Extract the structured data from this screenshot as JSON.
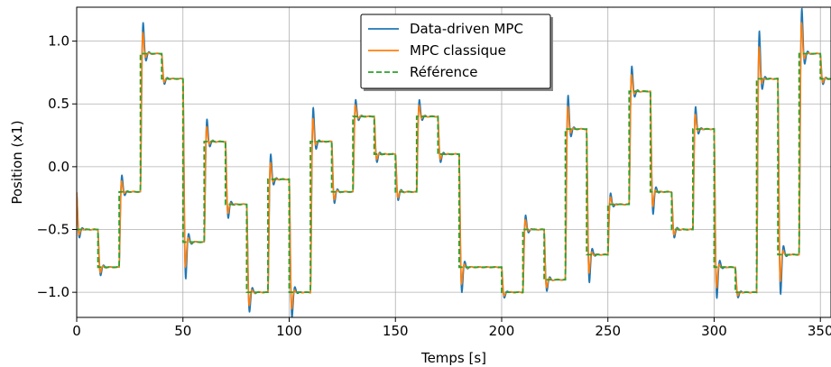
{
  "chart_data": {
    "type": "line",
    "title": "",
    "xlabel": "Temps [s]",
    "ylabel": "Position (x1)",
    "xlim": [
      0,
      355
    ],
    "ylim": [
      -1.2,
      1.27
    ],
    "grid": true,
    "legend_position": "top-center",
    "x_ticks": [
      0,
      50,
      100,
      150,
      200,
      250,
      300,
      350
    ],
    "x_tick_labels": [
      "0",
      "50",
      "100",
      "150",
      "200",
      "250",
      "300",
      "350"
    ],
    "y_ticks": [
      -1.0,
      -0.5,
      0.0,
      0.5,
      1.0
    ],
    "y_tick_labels": [
      "−1.0",
      "−0.5",
      "0.0",
      "0.5",
      "1.0"
    ],
    "reference_steps": {
      "step_duration": 10,
      "levels": [
        -0.5,
        -0.8,
        -0.2,
        0.9,
        0.7,
        -0.6,
        0.2,
        -0.3,
        -1.0,
        -0.1,
        -1.0,
        0.2,
        -0.2,
        0.4,
        0.1,
        -0.2,
        0.4,
        0.1,
        -0.8,
        -0.8,
        -1.0,
        -0.5,
        -0.9,
        0.3,
        -0.7,
        -0.3,
        0.6,
        -0.2,
        -0.5,
        0.3,
        -0.8,
        -1.0,
        0.7,
        -0.7,
        0.9,
        0.7
      ]
    },
    "series": [
      {
        "name": "Data-driven MPC",
        "color": "#1f77b4",
        "style": "solid",
        "tracks": "reference_steps",
        "overshoot": 0.18,
        "response_time": 1.6
      },
      {
        "name": "MPC classique",
        "color": "#ff7f0e",
        "style": "solid",
        "tracks": "reference_steps",
        "overshoot": 0.1,
        "response_time": 1.4
      },
      {
        "name": "Référence",
        "color": "#2ca02c",
        "style": "dashed",
        "tracks": "reference_steps"
      }
    ]
  }
}
